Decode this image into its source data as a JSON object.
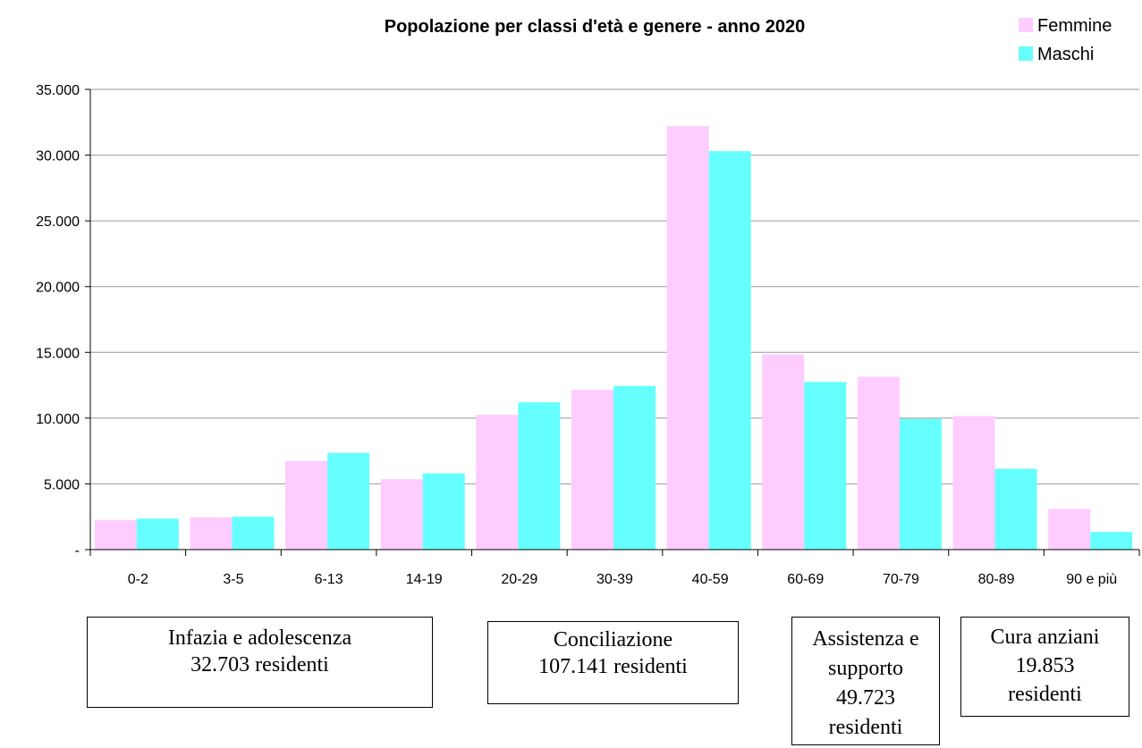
{
  "chart_data": {
    "type": "bar",
    "title": "Popolazione per classi d'età e genere - anno 2020",
    "xlabel": "",
    "ylabel": "",
    "categories": [
      "0-2",
      "3-5",
      "6-13",
      "14-19",
      "20-29",
      "30-39",
      "40-59",
      "60-69",
      "70-79",
      "80-89",
      "90 e più"
    ],
    "series": [
      {
        "name": "Femmine",
        "color": "#ffccff",
        "values": [
          2250,
          2450,
          6750,
          5350,
          10250,
          12150,
          32200,
          14850,
          13150,
          10150,
          3100
        ]
      },
      {
        "name": "Maschi",
        "color": "#66ffff",
        "values": [
          2350,
          2500,
          7350,
          5800,
          11200,
          12450,
          30300,
          12750,
          9950,
          6150,
          1350
        ]
      }
    ],
    "ylim": [
      0,
      35000
    ],
    "yticks": [
      {
        "value": 0,
        "label": "-"
      },
      {
        "value": 5000,
        "label": "5.000"
      },
      {
        "value": 10000,
        "label": "10.000"
      },
      {
        "value": 15000,
        "label": "15.000"
      },
      {
        "value": 20000,
        "label": "20.000"
      },
      {
        "value": 25000,
        "label": "25.000"
      },
      {
        "value": 30000,
        "label": "30.000"
      },
      {
        "value": 35000,
        "label": "35.000"
      }
    ],
    "grid": true,
    "legend_position": "top-right"
  },
  "annotations": [
    {
      "lines": [
        "Infazia e adolescenza",
        "32.703 residenti"
      ]
    },
    {
      "lines": [
        "Conciliazione",
        "107.141 residenti"
      ]
    },
    {
      "lines": [
        "Assistenza e",
        "supporto",
        "49.723",
        "residenti"
      ]
    },
    {
      "lines": [
        "Cura anziani",
        "19.853",
        "residenti"
      ]
    }
  ]
}
